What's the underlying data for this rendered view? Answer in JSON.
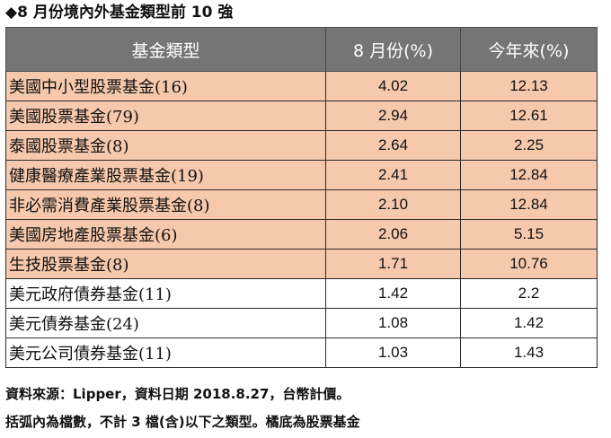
{
  "title": "◆8 月份境內外基金類型前 10 強",
  "table": {
    "headers": [
      "基金類型",
      "8 月份(%)",
      "今年來(%)"
    ],
    "rows": [
      {
        "name": "美國中小型股票基金(16)",
        "aug": "4.02",
        "ytd": "12.13",
        "highlight": true
      },
      {
        "name": "美國股票基金(79)",
        "aug": "2.94",
        "ytd": "12.61",
        "highlight": true
      },
      {
        "name": "泰國股票基金(8)",
        "aug": "2.64",
        "ytd": "2.25",
        "highlight": true
      },
      {
        "name": "健康醫療產業股票基金(19)",
        "aug": "2.41",
        "ytd": "12.84",
        "highlight": true
      },
      {
        "name": "非必需消費產業股票基金(8)",
        "aug": "2.10",
        "ytd": "12.84",
        "highlight": true
      },
      {
        "name": "美國房地產股票基金(6)",
        "aug": "2.06",
        "ytd": "5.15",
        "highlight": true
      },
      {
        "name": "生技股票基金(8)",
        "aug": "1.71",
        "ytd": "10.76",
        "highlight": true
      },
      {
        "name": "美元政府債券基金(11)",
        "aug": "1.42",
        "ytd": "2.2",
        "highlight": false
      },
      {
        "name": "美元債券基金(24)",
        "aug": "1.08",
        "ytd": "1.42",
        "highlight": false
      },
      {
        "name": "美元公司債券基金(11)",
        "aug": "1.03",
        "ytd": "1.43",
        "highlight": false
      }
    ]
  },
  "notes": {
    "source": "資料來源：Lipper，資料日期 2018.8.27，台幣計價。",
    "footnote": "括弧內為檔數，不計 3 檔(含)以下之類型。橘底為股票基金"
  },
  "colors": {
    "header_bg": "#757575",
    "highlight_bg": "#f6c9ad",
    "plain_bg": "#ffffff"
  }
}
